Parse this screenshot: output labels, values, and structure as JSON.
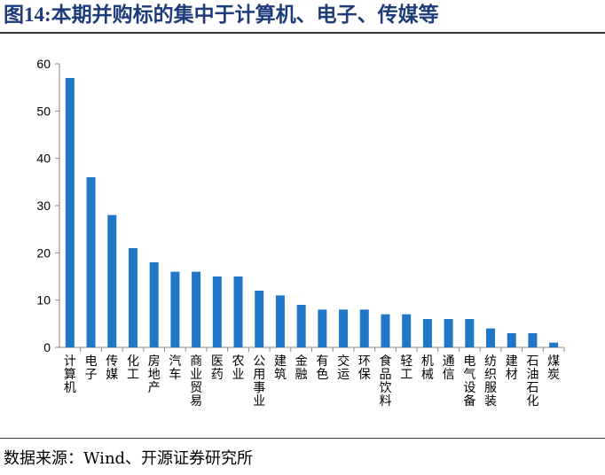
{
  "figure": {
    "label": "图14:",
    "title": "本期并购标的集中于计算机、电子、传媒等",
    "source": "数据来源：Wind、开源证券研究所"
  },
  "colors": {
    "bar": "#1f77c6",
    "title": "#1f3c7a",
    "axis": "#888888"
  },
  "chart_data": {
    "type": "bar",
    "title": "",
    "xlabel": "",
    "ylabel": "",
    "ylim": [
      0,
      60
    ],
    "yticks": [
      0,
      10,
      20,
      30,
      40,
      50,
      60
    ],
    "grid": false,
    "legend": "none",
    "categories": [
      "计算机",
      "电子",
      "传媒",
      "化工",
      "房地产",
      "汽车",
      "商业贸易",
      "医药",
      "农业",
      "公用事业",
      "建筑",
      "金融",
      "有色",
      "交运",
      "环保",
      "食品饮料",
      "轻工",
      "机械",
      "通信",
      "电气设备",
      "纺织服装",
      "建材",
      "石油石化",
      "煤炭"
    ],
    "values": [
      57,
      36,
      28,
      21,
      18,
      16,
      16,
      15,
      15,
      12,
      11,
      9,
      8,
      8,
      8,
      7,
      7,
      6,
      6,
      6,
      4,
      3,
      3,
      1
    ]
  }
}
